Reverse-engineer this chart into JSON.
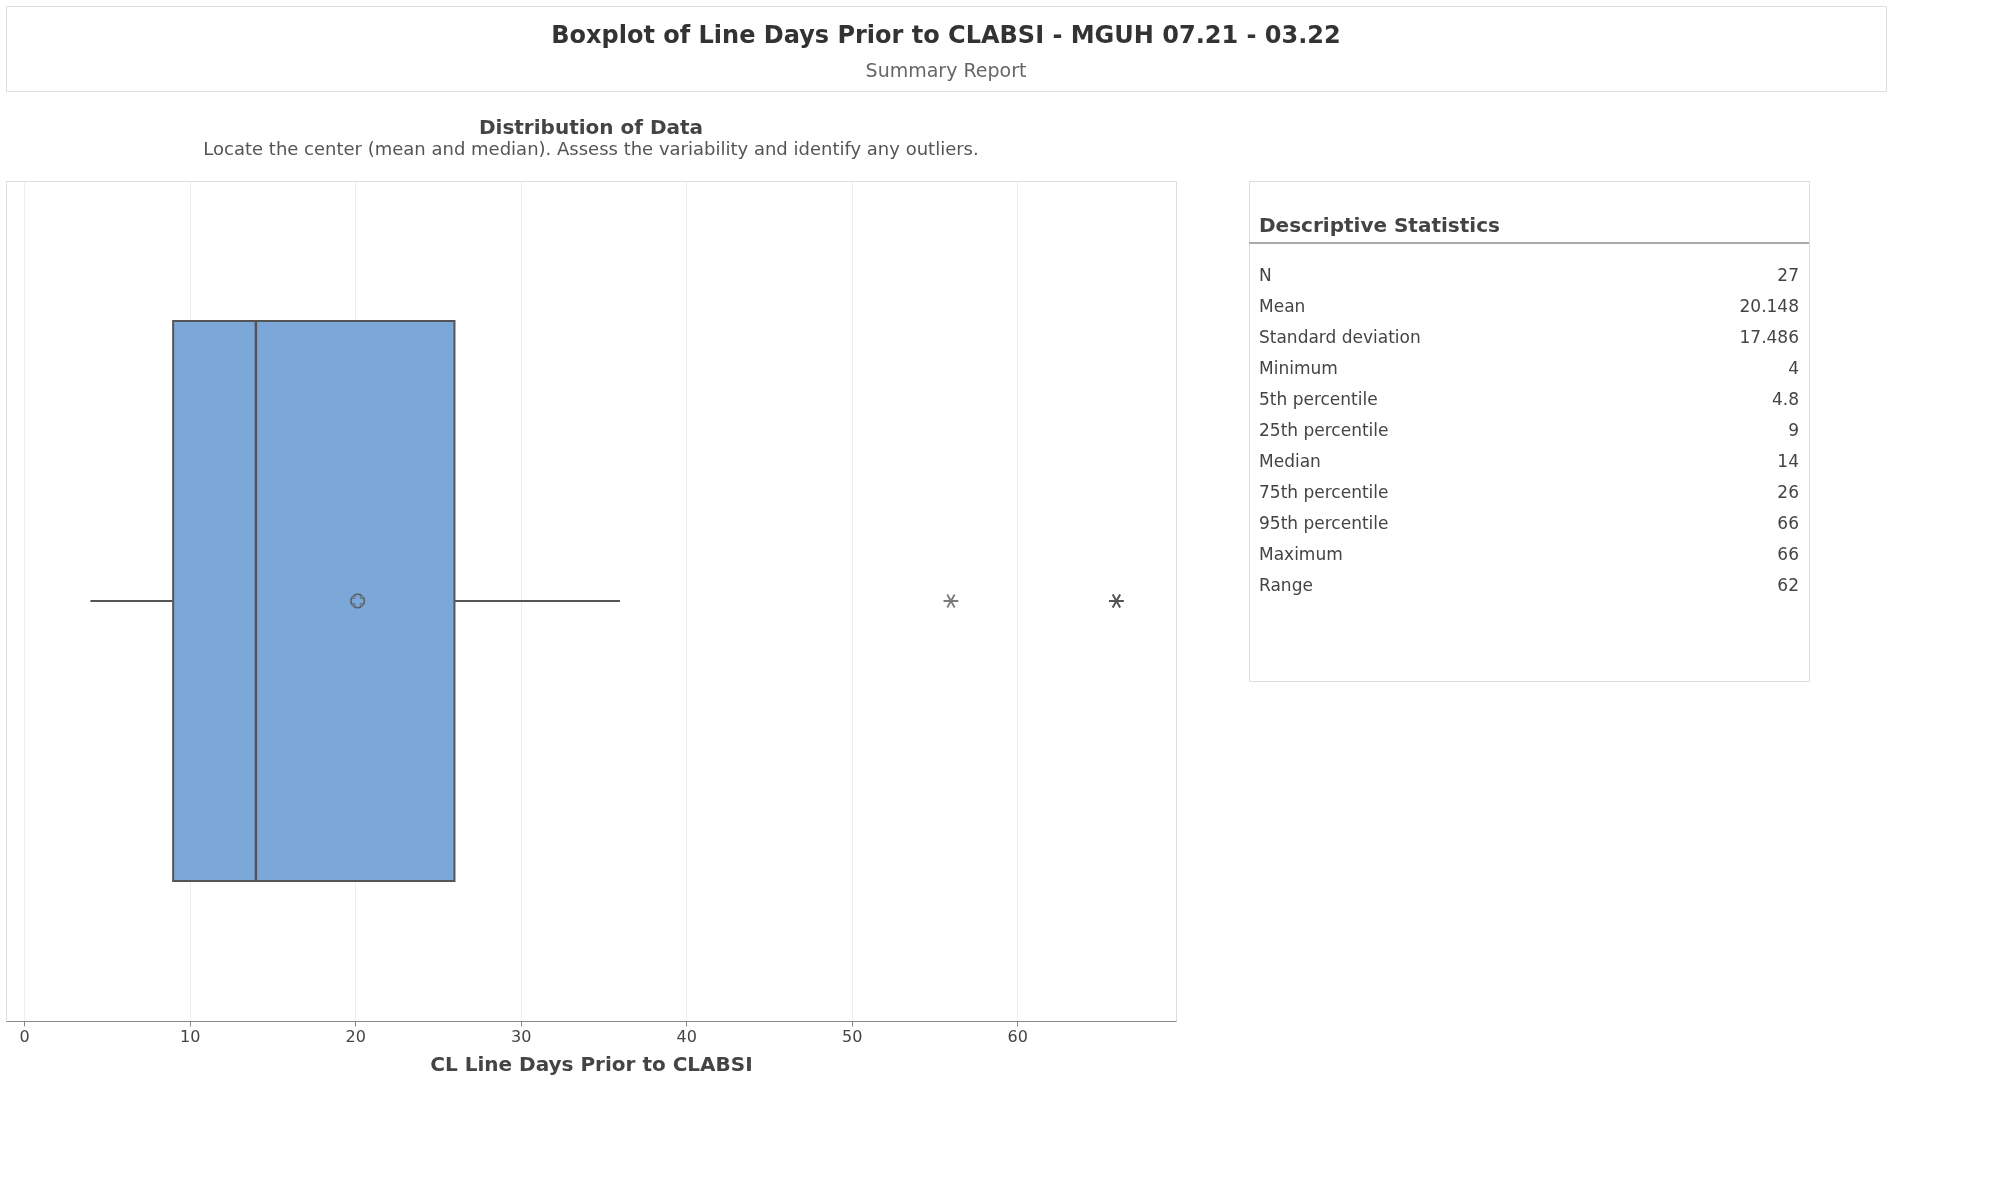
{
  "chart_data": [
    {
      "type": "other",
      "title": "Boxplot of Line Days Prior to CLABSI - MGUH 07.21 - 03.22",
      "subtitle": "Summary Report"
    },
    {
      "type": "box",
      "title": "Distribution of Data",
      "subtitle": "Locate the center (mean and median). Assess the variability and identify any outliers.",
      "orientation": "horizontal",
      "categories": [
        null
      ],
      "colors": [
        "#7ba7d9"
      ],
      "boxes": [
        {
          "low": 4,
          "q1": 9,
          "median": 14,
          "q3": 26,
          "high": 36,
          "mean": 20.148,
          "outliers": [
            56,
            66,
            66
          ]
        }
      ],
      "xlim": [
        -1.1,
        69.6
      ],
      "xticks": [
        0,
        10,
        20,
        30,
        40,
        50,
        60
      ],
      "grid": "x",
      "xlabel": "CL Line Days Prior to CLABSI"
    },
    {
      "type": "other",
      "title": "Descriptive Statistics",
      "annotations": [
        "N",
        "27",
        "Mean",
        "20.148",
        "Standard deviation",
        "17.486",
        "Minimum",
        "4",
        "5th percentile",
        "4.8",
        "25th percentile",
        "9",
        "Median",
        "14",
        "75th percentile",
        "26",
        "95th percentile",
        "66",
        "Maximum",
        "66",
        "Range",
        "62"
      ]
    }
  ]
}
